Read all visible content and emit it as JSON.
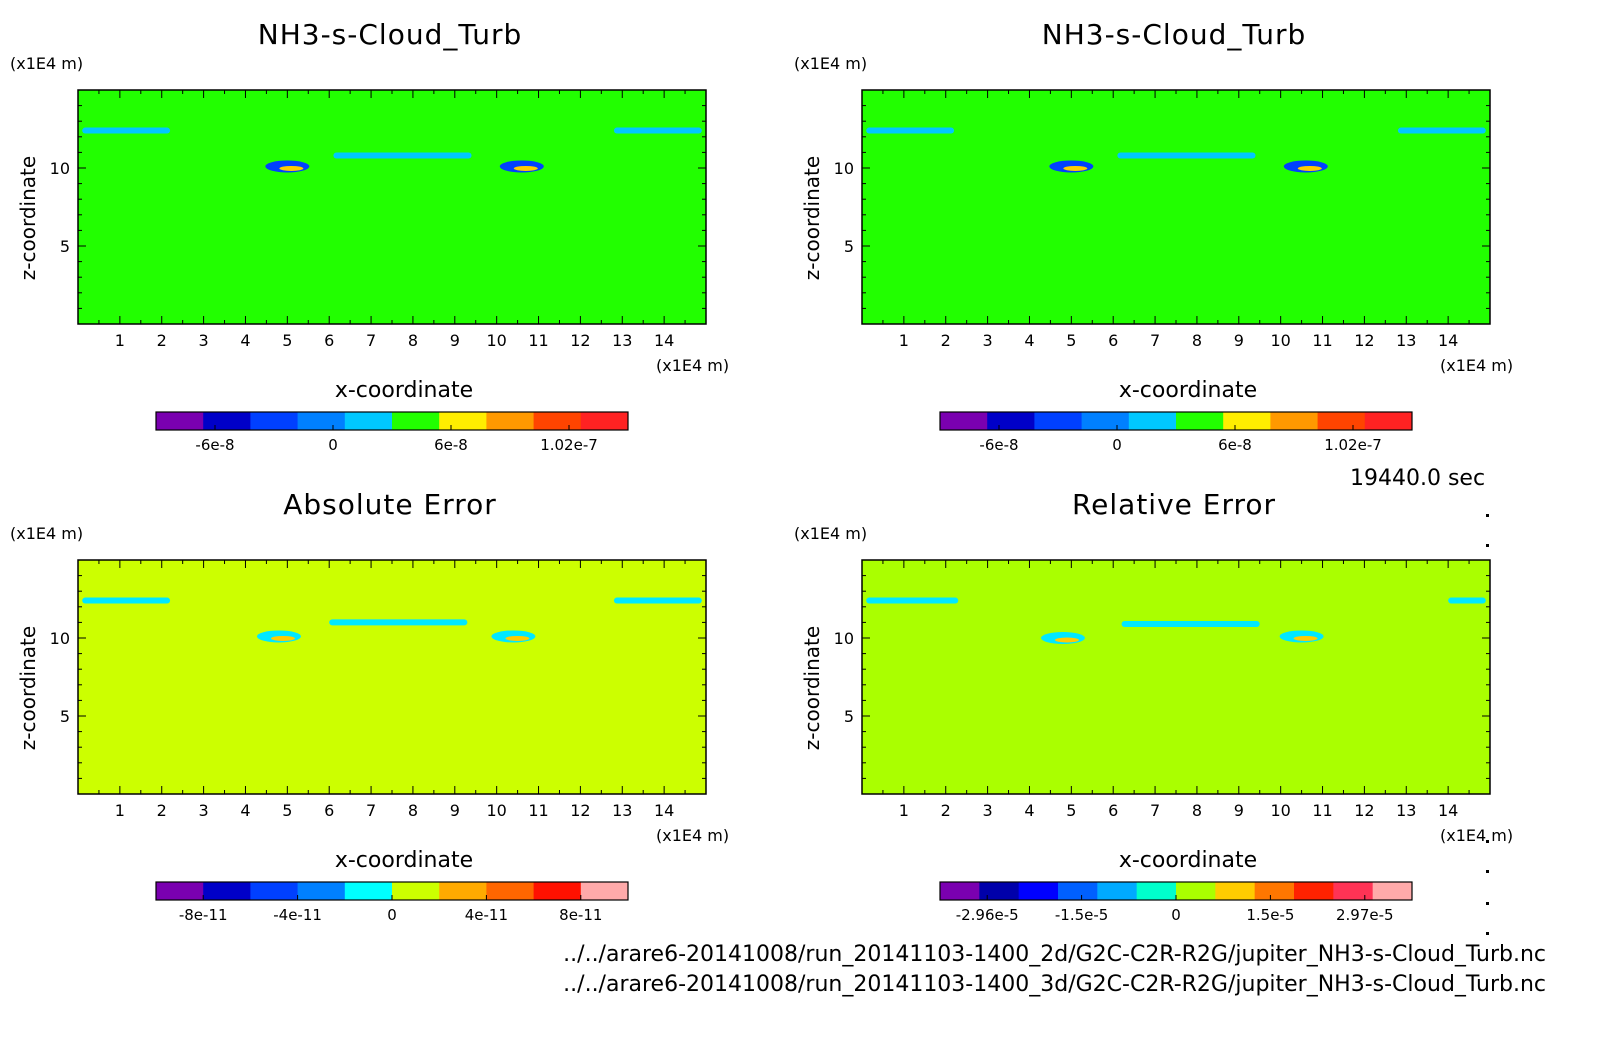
{
  "time_label": "19440.0 sec",
  "file_paths": [
    "../../arare6-20141008/run_20141103-1400_2d/G2C-C2R-R2G/jupiter_NH3-s-Cloud_Turb.nc",
    "../../arare6-20141008/run_20141103-1400_3d/G2C-C2R-R2G/jupiter_NH3-s-Cloud_Turb.nc"
  ],
  "chart_data": [
    {
      "type": "heatmap",
      "title": "NH3-s-Cloud_Turb",
      "xlabel": "x-coordinate",
      "ylabel": "z-coordinate",
      "x_unit": "(x1E4 m)",
      "z_unit": "(x1E4 m)",
      "xlim": [
        0,
        15
      ],
      "ylim": [
        0,
        15
      ],
      "x_ticks": [
        1,
        2,
        3,
        4,
        5,
        6,
        7,
        8,
        9,
        10,
        11,
        12,
        13,
        14
      ],
      "y_ticks": [
        5,
        10
      ],
      "background_color": "#22ff00",
      "colorbar": {
        "colors": [
          "#7a00b0",
          "#0000c8",
          "#0040ff",
          "#0080ff",
          "#00c8ff",
          "#22ff00",
          "#ffee00",
          "#ff9900",
          "#ff4400",
          "#ff2222"
        ],
        "tick_labels": [
          "-6e-8",
          "0",
          "6e-8",
          "1.02e-7"
        ]
      },
      "features": [
        {
          "kind": "band",
          "x": [
            0.1,
            2.2
          ],
          "z": 12.4,
          "color": "#00c8ff"
        },
        {
          "kind": "band",
          "x": [
            12.8,
            14.9
          ],
          "z": 12.4,
          "color": "#00c8ff"
        },
        {
          "kind": "band",
          "x": [
            6.1,
            9.4
          ],
          "z": 10.8,
          "color": "#00c8ff"
        },
        {
          "kind": "blob",
          "x": 5.0,
          "z": 10.1,
          "color": "#0040ff"
        },
        {
          "kind": "blob",
          "x": 10.6,
          "z": 10.1,
          "color": "#0040ff"
        }
      ]
    },
    {
      "type": "heatmap",
      "title": "NH3-s-Cloud_Turb",
      "xlabel": "x-coordinate",
      "ylabel": "z-coordinate",
      "x_unit": "(x1E4 m)",
      "z_unit": "(x1E4 m)",
      "xlim": [
        0,
        15
      ],
      "ylim": [
        0,
        15
      ],
      "x_ticks": [
        1,
        2,
        3,
        4,
        5,
        6,
        7,
        8,
        9,
        10,
        11,
        12,
        13,
        14
      ],
      "y_ticks": [
        5,
        10
      ],
      "background_color": "#22ff00",
      "colorbar": {
        "colors": [
          "#7a00b0",
          "#0000c8",
          "#0040ff",
          "#0080ff",
          "#00c8ff",
          "#22ff00",
          "#ffee00",
          "#ff9900",
          "#ff4400",
          "#ff2222"
        ],
        "tick_labels": [
          "-6e-8",
          "0",
          "6e-8",
          "1.02e-7"
        ]
      },
      "features": [
        {
          "kind": "band",
          "x": [
            0.1,
            2.2
          ],
          "z": 12.4,
          "color": "#00c8ff"
        },
        {
          "kind": "band",
          "x": [
            12.8,
            14.9
          ],
          "z": 12.4,
          "color": "#00c8ff"
        },
        {
          "kind": "band",
          "x": [
            6.1,
            9.4
          ],
          "z": 10.8,
          "color": "#00c8ff"
        },
        {
          "kind": "blob",
          "x": 5.0,
          "z": 10.1,
          "color": "#0040ff"
        },
        {
          "kind": "blob",
          "x": 10.6,
          "z": 10.1,
          "color": "#0040ff"
        }
      ]
    },
    {
      "type": "heatmap",
      "title": "Absolute Error",
      "xlabel": "x-coordinate",
      "ylabel": "z-coordinate",
      "x_unit": "(x1E4 m)",
      "z_unit": "(x1E4 m)",
      "xlim": [
        0,
        15
      ],
      "ylim": [
        0,
        15
      ],
      "x_ticks": [
        1,
        2,
        3,
        4,
        5,
        6,
        7,
        8,
        9,
        10,
        11,
        12,
        13,
        14
      ],
      "y_ticks": [
        5,
        10
      ],
      "background_color": "#ccff00",
      "colorbar": {
        "colors": [
          "#7a00b0",
          "#0000c8",
          "#0040ff",
          "#0080ff",
          "#00ffff",
          "#ccff00",
          "#ffaa00",
          "#ff6600",
          "#ff1100",
          "#ffaaaa"
        ],
        "tick_labels": [
          "-8e-11",
          "-4e-11",
          "0",
          "4e-11",
          "8e-11"
        ]
      },
      "features": [
        {
          "kind": "band",
          "x": [
            0.1,
            2.2
          ],
          "z": 12.4,
          "color": "#00e8ff"
        },
        {
          "kind": "band",
          "x": [
            12.8,
            14.9
          ],
          "z": 12.4,
          "color": "#00e8ff"
        },
        {
          "kind": "band",
          "x": [
            6.0,
            9.3
          ],
          "z": 11.0,
          "color": "#00e8ff"
        },
        {
          "kind": "blob",
          "x": 4.8,
          "z": 10.1,
          "color": "#00e8ff"
        },
        {
          "kind": "blob",
          "x": 10.4,
          "z": 10.1,
          "color": "#00e8ff"
        }
      ]
    },
    {
      "type": "heatmap",
      "title": "Relative Error",
      "xlabel": "x-coordinate",
      "ylabel": "z-coordinate",
      "x_unit": "(x1E4 m)",
      "z_unit": "(x1E4 m)",
      "xlim": [
        0,
        15
      ],
      "ylim": [
        0,
        15
      ],
      "x_ticks": [
        1,
        2,
        3,
        4,
        5,
        6,
        7,
        8,
        9,
        10,
        11,
        12,
        13,
        14
      ],
      "y_ticks": [
        5,
        10
      ],
      "background_color": "#aaff00",
      "colorbar": {
        "colors": [
          "#7a00b0",
          "#0000aa",
          "#0000ff",
          "#0060ff",
          "#00aaff",
          "#00ffcc",
          "#aaff00",
          "#ffcc00",
          "#ff7700",
          "#ff2200",
          "#ff3355",
          "#ffaaaa"
        ],
        "tick_labels": [
          "-2.96e-5",
          "-1.5e-5",
          "0",
          "1.5e-5",
          "2.97e-5"
        ]
      },
      "features": [
        {
          "kind": "band",
          "x": [
            0.1,
            2.3
          ],
          "z": 12.4,
          "color": "#00e8ff"
        },
        {
          "kind": "band",
          "x": [
            14.0,
            14.9
          ],
          "z": 12.4,
          "color": "#00e8ff"
        },
        {
          "kind": "band",
          "x": [
            6.2,
            9.5
          ],
          "z": 10.9,
          "color": "#00e8ff"
        },
        {
          "kind": "blob",
          "x": 4.8,
          "z": 10.0,
          "color": "#00e8ff"
        },
        {
          "kind": "blob",
          "x": 10.5,
          "z": 10.1,
          "color": "#00e8ff"
        }
      ]
    }
  ]
}
